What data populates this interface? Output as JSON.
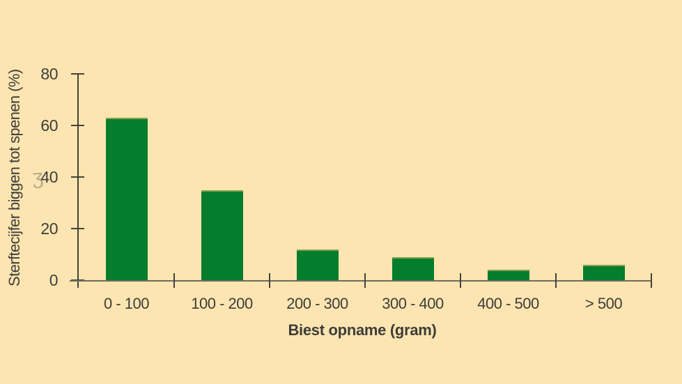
{
  "chart_data": {
    "type": "bar",
    "title": "",
    "categories": [
      "0 - 100",
      "100 - 200",
      "200 - 300",
      "300 - 400",
      "400 - 500",
      "> 500"
    ],
    "values": [
      63,
      35,
      12,
      9,
      4,
      6
    ],
    "xlabel": "Biest opname (gram)",
    "ylabel": "Sterftecijfer biggen tot spenen (%)",
    "ylim": [
      0,
      80
    ],
    "yticks": [
      0,
      20,
      40,
      60,
      80
    ],
    "grid": false,
    "legend": "none",
    "colors": {
      "background": "#FDE5B1",
      "bar": "#067D2C",
      "axis": "#44423C",
      "baseline": "#6E6B5E",
      "text": "#3E3D39"
    }
  },
  "artifact": {
    "glyph": "ʒ"
  }
}
